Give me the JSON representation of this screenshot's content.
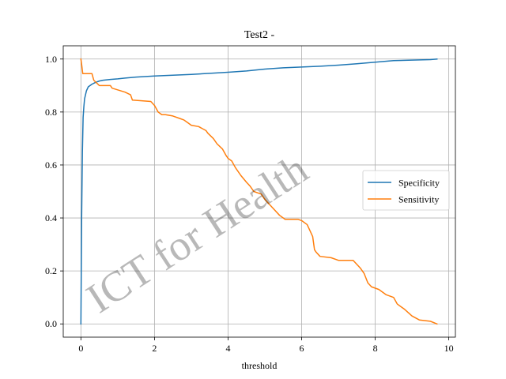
{
  "chart_data": {
    "type": "line",
    "title": "Test2 -",
    "xlabel": "threshold",
    "ylabel": "",
    "xlim": [
      -0.48,
      10.18
    ],
    "ylim": [
      -0.05,
      1.05
    ],
    "xticks": [
      0,
      2,
      4,
      6,
      8,
      10
    ],
    "yticks": [
      0.0,
      0.2,
      0.4,
      0.6,
      0.8,
      1.0
    ],
    "xtick_labels": [
      "0",
      "2",
      "4",
      "6",
      "8",
      "10"
    ],
    "ytick_labels": [
      "0.0",
      "0.2",
      "0.4",
      "0.6",
      "0.8",
      "1.0"
    ],
    "grid": true,
    "legend_position": "center-right",
    "watermark": "ICT for Health",
    "series": [
      {
        "name": "Specificity",
        "color": "#1f77b4",
        "x": [
          0.0,
          0.02,
          0.04,
          0.06,
          0.08,
          0.1,
          0.15,
          0.2,
          0.3,
          0.4,
          0.5,
          0.6,
          0.8,
          1.0,
          1.2,
          1.5,
          2.0,
          2.5,
          3.0,
          3.5,
          4.0,
          4.5,
          5.0,
          5.5,
          6.0,
          6.5,
          7.0,
          7.5,
          8.0,
          8.5,
          9.0,
          9.5,
          9.68
        ],
        "y": [
          0.0,
          0.4,
          0.65,
          0.78,
          0.82,
          0.85,
          0.88,
          0.895,
          0.905,
          0.912,
          0.917,
          0.92,
          0.923,
          0.925,
          0.928,
          0.932,
          0.936,
          0.939,
          0.942,
          0.946,
          0.95,
          0.955,
          0.962,
          0.967,
          0.97,
          0.973,
          0.977,
          0.982,
          0.988,
          0.994,
          0.996,
          0.998,
          1.0
        ]
      },
      {
        "name": "Sensitivity",
        "color": "#ff7f0e",
        "x": [
          0.0,
          0.02,
          0.05,
          0.3,
          0.35,
          0.5,
          0.8,
          0.85,
          1.2,
          1.35,
          1.4,
          1.9,
          2.0,
          2.1,
          2.2,
          2.3,
          2.5,
          2.7,
          2.8,
          2.9,
          3.0,
          3.2,
          3.4,
          3.45,
          3.6,
          3.7,
          3.85,
          3.95,
          4.0,
          4.1,
          4.2,
          4.35,
          4.5,
          4.6,
          4.7,
          4.9,
          5.0,
          5.2,
          5.4,
          5.55,
          5.9,
          6.0,
          6.15,
          6.2,
          6.3,
          6.35,
          6.4,
          6.5,
          6.8,
          7.0,
          7.4,
          7.6,
          7.7,
          7.8,
          7.9,
          8.1,
          8.3,
          8.5,
          8.6,
          8.8,
          9.0,
          9.2,
          9.5,
          9.68
        ],
        "y": [
          1.0,
          0.98,
          0.945,
          0.945,
          0.92,
          0.9,
          0.9,
          0.89,
          0.875,
          0.865,
          0.845,
          0.84,
          0.825,
          0.8,
          0.79,
          0.79,
          0.785,
          0.775,
          0.77,
          0.76,
          0.75,
          0.745,
          0.73,
          0.72,
          0.7,
          0.68,
          0.66,
          0.635,
          0.625,
          0.615,
          0.59,
          0.56,
          0.535,
          0.52,
          0.5,
          0.49,
          0.47,
          0.44,
          0.41,
          0.395,
          0.395,
          0.39,
          0.375,
          0.36,
          0.33,
          0.28,
          0.27,
          0.255,
          0.25,
          0.24,
          0.24,
          0.21,
          0.19,
          0.155,
          0.14,
          0.13,
          0.11,
          0.1,
          0.075,
          0.055,
          0.03,
          0.015,
          0.01,
          0.0
        ]
      }
    ]
  }
}
